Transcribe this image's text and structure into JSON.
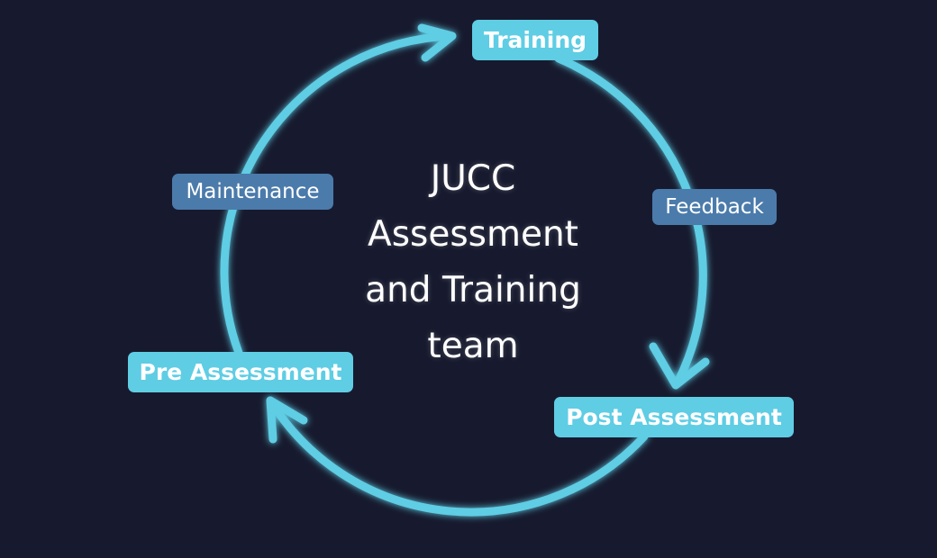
{
  "colors": {
    "background": "#171a2e",
    "cycle_stroke": "#5fcde4",
    "stage_fill": "#5fcde4",
    "link_fill": "#4b7bab",
    "text": "#ffffff"
  },
  "center": {
    "lines": [
      "JUCC",
      "Assessment",
      "and Training",
      "team"
    ]
  },
  "stages": {
    "training": "Training",
    "post_assessment": "Post Assessment",
    "pre_assessment": "Pre Assessment"
  },
  "links": {
    "feedback": "Feedback",
    "maintenance": "Maintenance"
  }
}
